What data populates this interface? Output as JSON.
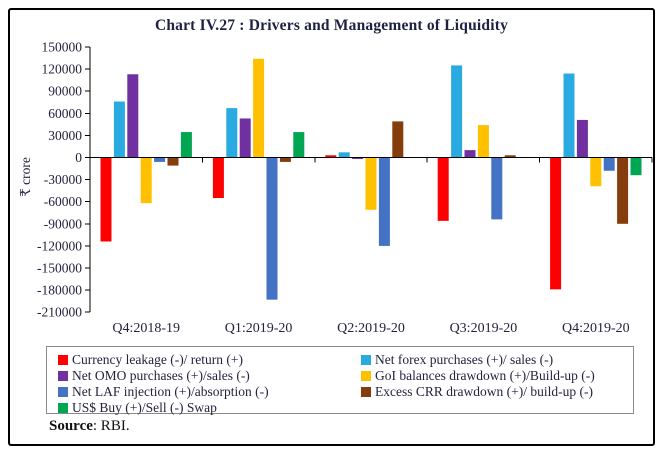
{
  "title": "Chart IV.27 : Drivers and Management of Liquidity",
  "source": {
    "label": "Source",
    "suffix": ": RBI."
  },
  "colors": {
    "text": "#23233f",
    "frame_border": "#000000",
    "legend_border": "#8a8a8a"
  },
  "chart_data": {
    "type": "bar",
    "title": "Chart IV.27 : Drivers and Management of Liquidity",
    "xlabel": "",
    "ylabel": "₹ crore",
    "y_axis": {
      "min": -210000,
      "max": 150000,
      "step": 30000
    },
    "grid": false,
    "legend_position": "bottom",
    "categories": [
      "Q4:2018-19",
      "Q1:2019-20",
      "Q2:2019-20",
      "Q3:2019-20",
      "Q4:2019-20"
    ],
    "series": [
      {
        "name": "Currency leakage (-)/ return (+)",
        "color": "#fe0000",
        "values": [
          -114000,
          -55000,
          3000,
          -86000,
          -179000
        ]
      },
      {
        "name": "Net forex purchases (+)/ sales (-)",
        "color": "#29abe2",
        "values": [
          76000,
          67000,
          7000,
          125000,
          114000
        ]
      },
      {
        "name": "Net OMO purchases (+)/sales (-)",
        "color": "#7030a0",
        "values": [
          113000,
          53000,
          -2000,
          10000,
          51000
        ]
      },
      {
        "name": "GoI balances drawdown (+)/Build-up (-)",
        "color": "#ffc000",
        "values": [
          -62000,
          134000,
          -71000,
          44000,
          -39000
        ]
      },
      {
        "name": "Net LAF injection (+)/absorption (-)",
        "color": "#4472c4",
        "values": [
          -6000,
          -193000,
          -120000,
          -84000,
          -18000
        ]
      },
      {
        "name": "Excess CRR drawdown (+)/ build-up (-)",
        "color": "#853d0c",
        "values": [
          -11000,
          -6000,
          49000,
          3000,
          -90000
        ]
      },
      {
        "name": "US$ Buy (+)/Sell (-) Swap",
        "color": "#00a651",
        "values": [
          34500,
          34500,
          0,
          0,
          -24000
        ]
      }
    ]
  }
}
